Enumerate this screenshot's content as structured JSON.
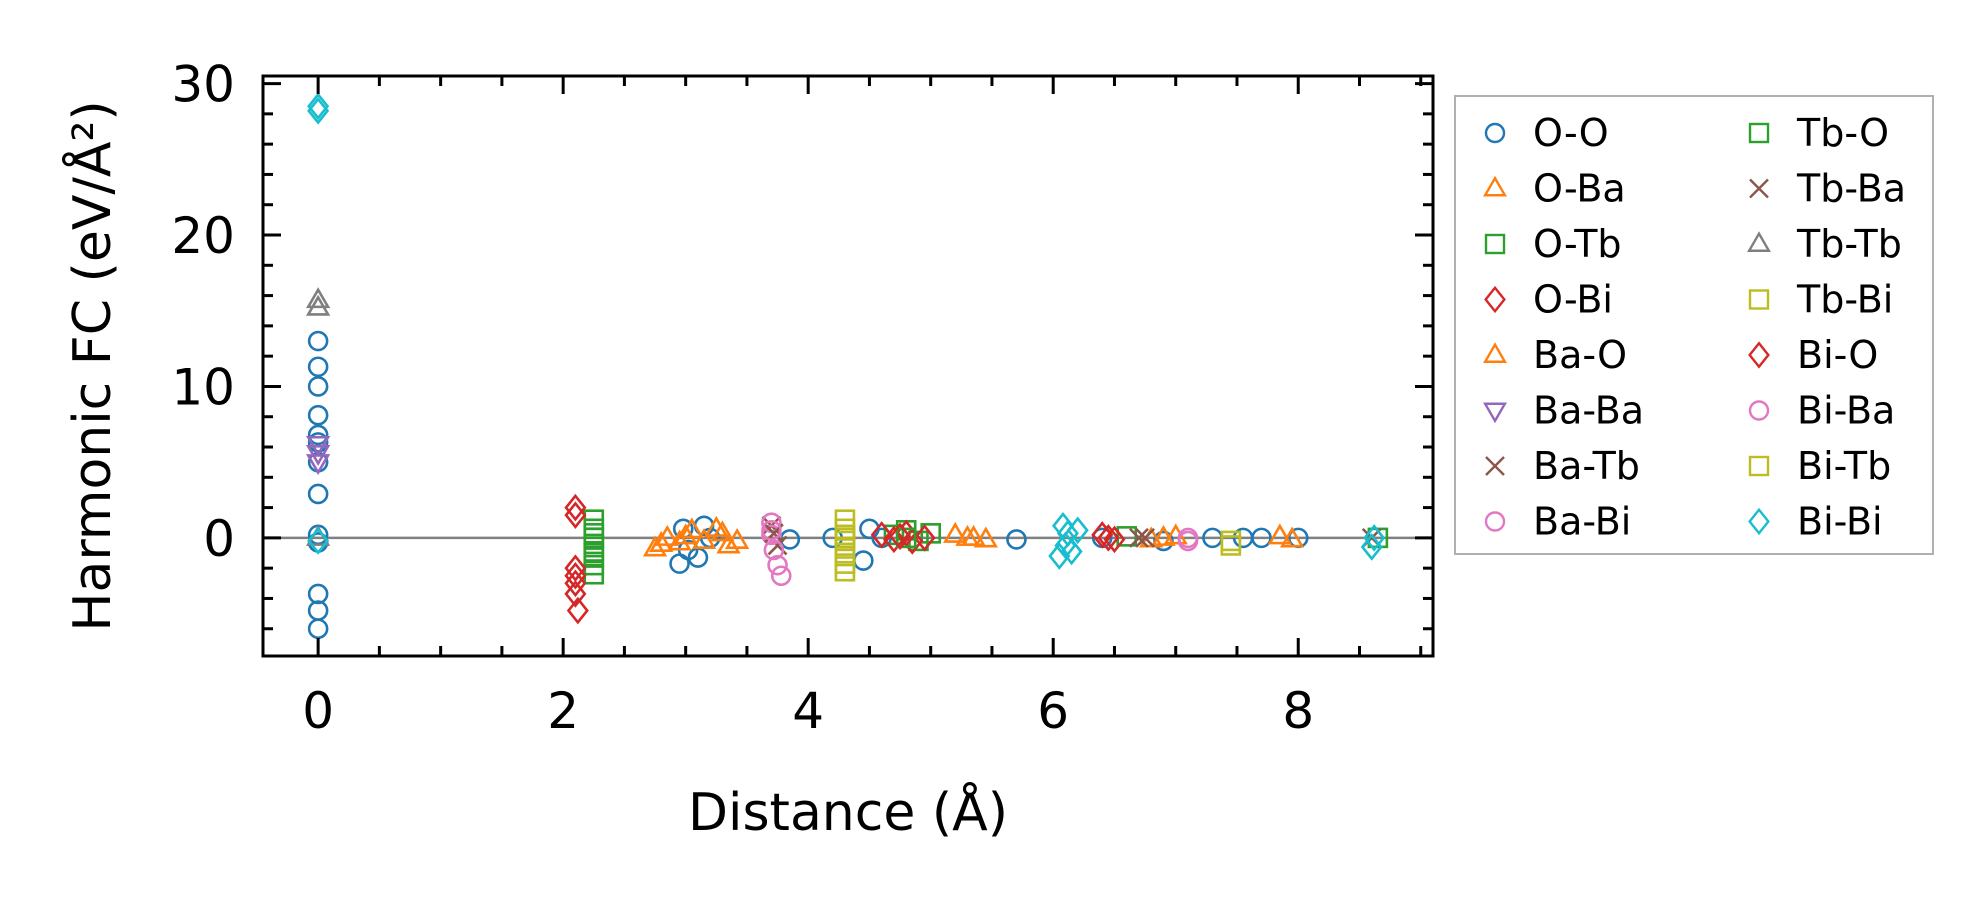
{
  "chart_data": {
    "type": "scatter",
    "title": "",
    "xlabel": "Distance (Å)",
    "ylabel": "Harmonic FC (eV/Å²)",
    "xlim": [
      -0.45,
      9.1
    ],
    "ylim": [
      -7.8,
      30.5
    ],
    "xticks": [
      0,
      2,
      4,
      6,
      8
    ],
    "yticks": [
      0,
      10,
      20,
      30
    ],
    "grid": false,
    "zero_line": true,
    "legend": {
      "placement": "right-outside",
      "columns": 2
    },
    "series": [
      {
        "name": "O-O",
        "marker": "circle",
        "color": "#1f77b4",
        "x": [
          0,
          0,
          0,
          0,
          0,
          0,
          0,
          0,
          0,
          0,
          0,
          0,
          0,
          2.95,
          2.98,
          3.02,
          3.1,
          3.15,
          3.2,
          3.85,
          4.2,
          4.45,
          4.5,
          4.6,
          5.7,
          6.4,
          6.9,
          7.3,
          7.55,
          7.7,
          8.0
        ],
        "y": [
          13.0,
          11.3,
          10.0,
          8.1,
          6.8,
          6.3,
          5.0,
          2.9,
          -0.3,
          -3.7,
          -4.8,
          -6.0,
          0.2,
          -1.7,
          0.6,
          -0.8,
          -1.3,
          0.8,
          0.0,
          -0.1,
          0.0,
          -1.5,
          0.6,
          0.0,
          -0.1,
          0.0,
          -0.2,
          0.0,
          0.0,
          0.0,
          0.0
        ]
      },
      {
        "name": "O-Ba",
        "marker": "triangle-up",
        "color": "#ff7f0e",
        "x": [
          2.75,
          2.85,
          2.95,
          3.05,
          3.15,
          3.25,
          3.35,
          3.42,
          5.2,
          5.35,
          5.45,
          6.8,
          6.9,
          7.0,
          7.85,
          7.95
        ],
        "y": [
          -0.7,
          0.0,
          -0.3,
          0.5,
          -0.2,
          0.6,
          -0.5,
          -0.2,
          0.2,
          0.0,
          -0.1,
          -0.1,
          0.0,
          0.1,
          0.1,
          -0.1
        ]
      },
      {
        "name": "O-Tb",
        "marker": "square",
        "color": "#2ca02c",
        "x": [
          2.25,
          2.25,
          2.25,
          2.25,
          2.25,
          2.25,
          2.25,
          2.25,
          4.7,
          4.8,
          4.9,
          5.0,
          6.6,
          8.65
        ],
        "y": [
          1.2,
          0.6,
          0.0,
          -0.4,
          -0.9,
          -1.3,
          -1.8,
          -2.4,
          0.2,
          0.5,
          -0.2,
          0.3,
          0.1,
          0.0
        ]
      },
      {
        "name": "O-Bi",
        "marker": "diamond",
        "color": "#d62728",
        "x": [
          2.1,
          2.1,
          2.1,
          2.1,
          2.1,
          2.12,
          4.6,
          4.7,
          4.8,
          4.85,
          4.95,
          6.4,
          6.5
        ],
        "y": [
          2.0,
          1.5,
          -2.0,
          -3.0,
          -3.7,
          -4.8,
          0.2,
          -0.1,
          0.3,
          -0.2,
          0.0,
          0.2,
          -0.1
        ]
      },
      {
        "name": "Ba-O",
        "marker": "triangle-up",
        "color": "#ff7f0e",
        "x": [
          2.8,
          3.0,
          3.3,
          5.3
        ],
        "y": [
          -0.4,
          0.1,
          0.3,
          0.0
        ]
      },
      {
        "name": "Ba-Ba",
        "marker": "triangle-down",
        "color": "#9467bd",
        "x": [
          0,
          0,
          0
        ],
        "y": [
          6.2,
          5.6,
          5.0
        ]
      },
      {
        "name": "Ba-Tb",
        "marker": "x",
        "color": "#8c564b",
        "x": [
          3.7,
          3.75,
          6.7,
          8.6
        ],
        "y": [
          0.8,
          -0.5,
          0.0,
          0.0
        ]
      },
      {
        "name": "Ba-Bi",
        "marker": "circle",
        "color": "#e377c2",
        "x": [
          3.7,
          3.7,
          3.72,
          3.75,
          3.78,
          7.1
        ],
        "y": [
          1.0,
          0.2,
          -0.8,
          -1.8,
          -2.5,
          0.0
        ]
      },
      {
        "name": "Tb-O",
        "marker": "square",
        "color": "#2ca02c",
        "x": [
          2.25,
          2.25,
          4.8
        ],
        "y": [
          0.3,
          -1.0,
          0.0
        ]
      },
      {
        "name": "Tb-Ba",
        "marker": "x",
        "color": "#8c564b",
        "x": [
          3.72,
          6.75
        ],
        "y": [
          0.3,
          0.0
        ]
      },
      {
        "name": "Tb-Tb",
        "marker": "triangle-up",
        "color": "#7f7f7f",
        "x": [
          0,
          0,
          0
        ],
        "y": [
          15.7,
          15.2,
          0.0
        ]
      },
      {
        "name": "Tb-Bi",
        "marker": "square",
        "color": "#bcbd22",
        "x": [
          4.3,
          4.3,
          4.3,
          4.3,
          4.3,
          4.3,
          4.3,
          4.3,
          7.45
        ],
        "y": [
          1.2,
          0.6,
          0.2,
          -0.2,
          -0.7,
          -1.2,
          -1.7,
          -2.2,
          -0.5
        ]
      },
      {
        "name": "Bi-O",
        "marker": "diamond",
        "color": "#d62728",
        "x": [
          2.1,
          4.75,
          6.45
        ],
        "y": [
          -2.5,
          0.1,
          0.0
        ]
      },
      {
        "name": "Bi-Ba",
        "marker": "circle",
        "color": "#e377c2",
        "x": [
          3.7,
          7.1
        ],
        "y": [
          0.5,
          -0.2
        ]
      },
      {
        "name": "Bi-Tb",
        "marker": "square",
        "color": "#bcbd22",
        "x": [
          4.3,
          7.45
        ],
        "y": [
          0.0,
          -0.2
        ]
      },
      {
        "name": "Bi-Bi",
        "marker": "diamond",
        "color": "#17becf",
        "x": [
          0,
          0,
          0,
          6.05,
          6.08,
          6.1,
          6.12,
          6.15,
          6.2,
          8.6,
          8.62
        ],
        "y": [
          28.5,
          28.2,
          -0.2,
          -1.2,
          0.8,
          -0.5,
          0.3,
          -0.9,
          0.5,
          -0.6,
          0.0
        ]
      }
    ]
  }
}
